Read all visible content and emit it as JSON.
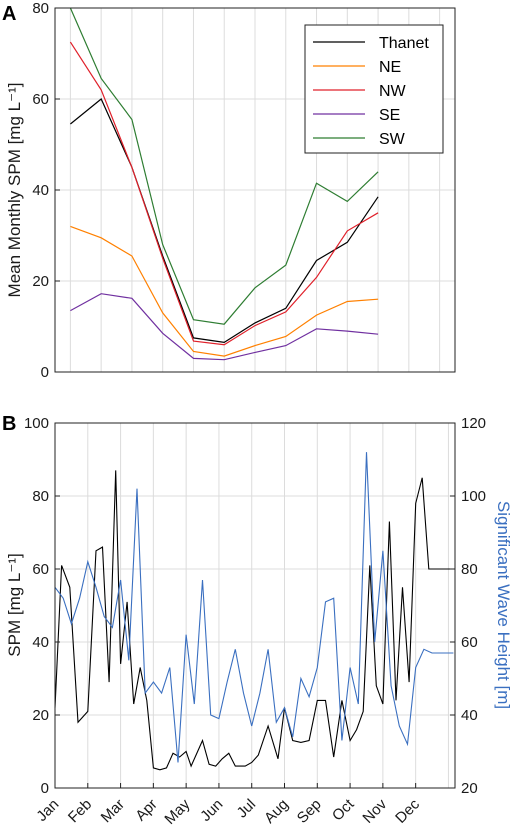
{
  "chart_data": [
    {
      "panel_label": "A",
      "type": "line",
      "ylabel": "Mean Monthly SPM [mg L⁻¹]",
      "ylim": [
        0,
        80
      ],
      "yticks": [
        0,
        20,
        40,
        60,
        80
      ],
      "x": [
        1,
        2,
        3,
        4,
        5,
        6,
        7,
        8,
        9,
        10,
        11,
        12
      ],
      "xlim": [
        0.5,
        13.5
      ],
      "grid": true,
      "legend_position": "top-right",
      "series": [
        {
          "name": "Thanet",
          "color": "#000000",
          "values": [
            54.5,
            60,
            45,
            25.5,
            7.5,
            6.5,
            10.8,
            14,
            24.5,
            28.5,
            38.5,
            null
          ]
        },
        {
          "name": "NE",
          "color": "#ff8000",
          "values": [
            32,
            29.5,
            25.5,
            13,
            4.5,
            3.5,
            5.8,
            7.8,
            12.5,
            15.5,
            16,
            null
          ]
        },
        {
          "name": "NW",
          "color": "#e0202a",
          "values": [
            72.5,
            62,
            45,
            25,
            6.8,
            6,
            10.2,
            13.2,
            20.8,
            31,
            35,
            null
          ]
        },
        {
          "name": "SE",
          "color": "#7030a0",
          "values": [
            13.5,
            17.2,
            16.2,
            8.5,
            3,
            2.7,
            4.3,
            5.8,
            9.5,
            9,
            8.3,
            null
          ]
        },
        {
          "name": "SW",
          "color": "#2e7d32",
          "values": [
            80,
            64.5,
            55.5,
            28,
            11.5,
            10.5,
            18.5,
            23.5,
            41.5,
            37.5,
            44,
            null
          ]
        }
      ]
    },
    {
      "panel_label": "B",
      "type": "line",
      "ylabel": "SPM [mg L⁻¹]",
      "ylabel_right": "Significant Wave Height [m]",
      "ylim": [
        0,
        100
      ],
      "yticks": [
        0,
        20,
        40,
        60,
        80,
        100
      ],
      "ylim_right": [
        20,
        120
      ],
      "yticks_right": [
        20,
        40,
        60,
        80,
        100,
        120
      ],
      "categories": [
        "Jan",
        "Feb",
        "Mar",
        "Apr",
        "May",
        "Jun",
        "Jul",
        "Aug",
        "Sep",
        "Oct",
        "Nov",
        "Dec"
      ],
      "xlim": [
        1,
        13.2
      ],
      "grid": true,
      "series": [
        {
          "name": "SPM",
          "axis": "left",
          "color": "#000000",
          "x": [
            1,
            1.2,
            1.45,
            1.7,
            2,
            2.25,
            2.45,
            2.65,
            2.85,
            3,
            3.2,
            3.4,
            3.6,
            3.8,
            4,
            4.2,
            4.4,
            4.6,
            4.8,
            5,
            5.15,
            5.3,
            5.5,
            5.7,
            5.9,
            6.1,
            6.3,
            6.5,
            6.8,
            7,
            7.2,
            7.5,
            7.8,
            8,
            8.25,
            8.5,
            8.75,
            9,
            9.25,
            9.5,
            9.75,
            10,
            10.2,
            10.4,
            10.6,
            10.8,
            11,
            11.2,
            11.4,
            11.6,
            11.8,
            12,
            12.2,
            12.4,
            12.6,
            12.8,
            13,
            13.15
          ],
          "values": [
            22,
            61,
            55,
            18,
            21,
            65,
            66,
            29,
            87,
            34,
            51,
            23,
            33,
            24,
            5.5,
            5,
            5.5,
            9.5,
            8.5,
            10,
            6,
            9,
            13,
            6.5,
            6,
            8,
            9.5,
            6,
            6,
            7,
            9,
            17,
            8,
            22,
            13,
            12.5,
            13,
            24,
            24,
            8.5,
            24,
            13,
            16,
            21,
            61,
            28,
            23,
            73,
            24,
            55,
            29,
            78,
            85,
            60,
            60,
            60,
            60,
            60
          ]
        },
        {
          "name": "Significant Wave Height",
          "axis": "right",
          "color": "#3a6fc0",
          "x": [
            1,
            1.25,
            1.5,
            1.75,
            2,
            2.25,
            2.5,
            2.75,
            3,
            3.25,
            3.5,
            3.75,
            4,
            4.25,
            4.5,
            4.75,
            5,
            5.25,
            5.5,
            5.75,
            6,
            6.25,
            6.5,
            6.75,
            7,
            7.25,
            7.5,
            7.75,
            8,
            8.25,
            8.5,
            8.75,
            9,
            9.25,
            9.5,
            9.75,
            10,
            10.25,
            10.5,
            10.75,
            11,
            11.25,
            11.5,
            11.75,
            12,
            12.25,
            12.5,
            12.75,
            13,
            13.15
          ],
          "values": [
            75,
            72,
            65,
            72,
            82,
            75,
            67,
            64,
            77,
            55,
            102,
            46,
            49,
            46,
            53,
            27,
            62,
            43,
            77,
            40,
            39,
            49,
            58,
            46,
            37,
            46,
            58,
            38,
            42,
            34,
            50,
            45,
            53,
            71,
            72,
            33,
            53,
            43,
            112,
            60,
            85,
            48,
            37,
            32,
            53,
            58,
            57,
            57,
            57,
            57
          ]
        }
      ]
    }
  ]
}
